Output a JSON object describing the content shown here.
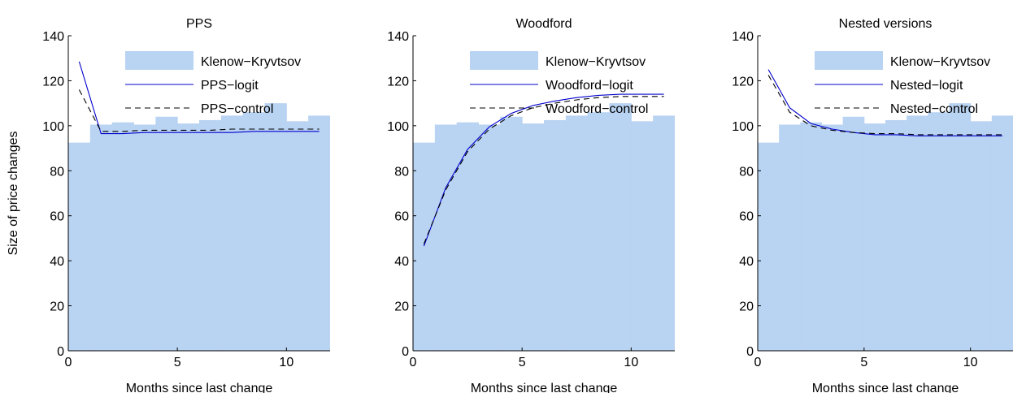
{
  "figure": {
    "ylabel": "Size of price changes"
  },
  "chart_data": [
    {
      "type": "bar+line",
      "title": "PPS",
      "xlabel": "Months since last change",
      "ylabel": "Size of price changes",
      "xlim": [
        0,
        12
      ],
      "ylim": [
        0,
        140
      ],
      "xticks": [
        0,
        5,
        10
      ],
      "yticks": [
        0,
        20,
        40,
        60,
        80,
        100,
        120,
        140
      ],
      "legend_position": "top-right",
      "bars": {
        "name": "Klenow−Kryvtsov",
        "color": "#b9d3f2",
        "x": [
          1,
          2,
          3,
          4,
          5,
          6,
          7,
          8,
          9,
          10,
          11,
          12
        ],
        "values": [
          92.5,
          100.5,
          101.5,
          100.5,
          104,
          101,
          102.5,
          104.5,
          106,
          110,
          102,
          104.5
        ]
      },
      "series": [
        {
          "name": "PPS−logit",
          "style": "solid",
          "color": "#0000cc",
          "x": [
            0.5,
            1.5,
            2.5,
            3.5,
            4.5,
            5.5,
            6.5,
            7.5,
            8.5,
            9.5,
            10.5,
            11.5
          ],
          "values": [
            128.5,
            96.5,
            96.5,
            97,
            97,
            97,
            97,
            97,
            97.5,
            97.5,
            97.5,
            97.5
          ]
        },
        {
          "name": "PPS−control",
          "style": "dashed",
          "color": "#000000",
          "x": [
            0.5,
            1.5,
            2.5,
            3.5,
            4.5,
            5.5,
            6.5,
            7.5,
            8.5,
            9.5,
            10.5,
            11.5
          ],
          "values": [
            116,
            97.5,
            97.5,
            98,
            98,
            98,
            98,
            98.5,
            98.5,
            98.5,
            98.5,
            98.5
          ]
        }
      ]
    },
    {
      "type": "bar+line",
      "title": "Woodford",
      "xlabel": "Months since last change",
      "ylabel": "",
      "xlim": [
        0,
        12
      ],
      "ylim": [
        0,
        140
      ],
      "xticks": [
        0,
        5,
        10
      ],
      "yticks": [
        0,
        20,
        40,
        60,
        80,
        100,
        120,
        140
      ],
      "legend_position": "top-right",
      "bars": {
        "name": "Klenow−Kryvtsov",
        "color": "#b9d3f2",
        "x": [
          1,
          2,
          3,
          4,
          5,
          6,
          7,
          8,
          9,
          10,
          11,
          12
        ],
        "values": [
          92.5,
          100.5,
          101.5,
          100.5,
          104,
          101,
          102.5,
          104.5,
          106,
          110,
          102,
          104.5
        ]
      },
      "series": [
        {
          "name": "Woodford−logit",
          "style": "solid",
          "color": "#0000cc",
          "x": [
            0.5,
            1.5,
            2.5,
            3.5,
            4.5,
            5.5,
            6.5,
            7.5,
            8.5,
            9.5,
            10.5,
            11.5
          ],
          "values": [
            46.5,
            72.5,
            89.5,
            99.5,
            105.5,
            109,
            111,
            112.5,
            113.5,
            114,
            114,
            114
          ]
        },
        {
          "name": "Woodford−control",
          "style": "dashed",
          "color": "#000000",
          "x": [
            0.5,
            1.5,
            2.5,
            3.5,
            4.5,
            5.5,
            6.5,
            7.5,
            8.5,
            9.5,
            10.5,
            11.5
          ],
          "values": [
            47.5,
            71.5,
            88.5,
            98.5,
            104.5,
            108,
            110,
            111.5,
            112.5,
            113,
            113,
            113
          ]
        }
      ]
    },
    {
      "type": "bar+line",
      "title": "Nested versions",
      "xlabel": "Months since last change",
      "ylabel": "",
      "xlim": [
        0,
        12
      ],
      "ylim": [
        0,
        140
      ],
      "xticks": [
        0,
        5,
        10
      ],
      "yticks": [
        0,
        20,
        40,
        60,
        80,
        100,
        120,
        140
      ],
      "legend_position": "top-right",
      "bars": {
        "name": "Klenow−Kryvtsov",
        "color": "#b9d3f2",
        "x": [
          1,
          2,
          3,
          4,
          5,
          6,
          7,
          8,
          9,
          10,
          11,
          12
        ],
        "values": [
          92.5,
          100.5,
          101.5,
          100.5,
          104,
          101,
          102.5,
          104.5,
          106,
          110,
          102,
          104.5
        ]
      },
      "series": [
        {
          "name": "Nested−logit",
          "style": "solid",
          "color": "#0000cc",
          "x": [
            0.5,
            1.5,
            2.5,
            3.5,
            4.5,
            5.5,
            6.5,
            7.5,
            8.5,
            9.5,
            10.5,
            11.5
          ],
          "values": [
            125,
            108,
            101,
            98.5,
            97,
            96,
            96,
            95.5,
            95.5,
            95.5,
            95.5,
            95.5
          ]
        },
        {
          "name": "Nested−control",
          "style": "dashed",
          "color": "#000000",
          "x": [
            0.5,
            1.5,
            2.5,
            3.5,
            4.5,
            5.5,
            6.5,
            7.5,
            8.5,
            9.5,
            10.5,
            11.5
          ],
          "values": [
            122.5,
            106,
            100,
            98,
            97,
            96.5,
            96.5,
            96,
            96,
            96,
            96,
            96
          ]
        }
      ]
    }
  ]
}
